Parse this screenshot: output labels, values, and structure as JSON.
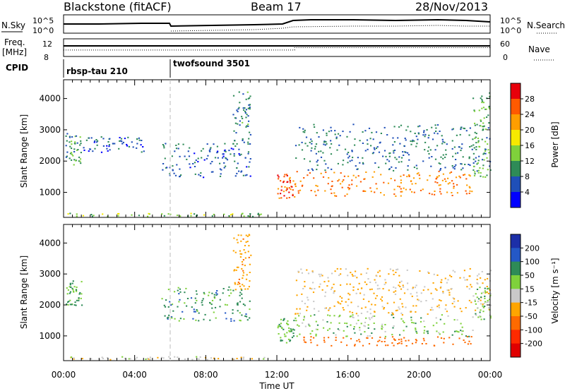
{
  "header": {
    "station": "Blackstone (fitACF)",
    "beam": "Beam 17",
    "date": "28/Nov/2013"
  },
  "noise_panel": {
    "left_label": "N.Sky",
    "right_label": "N.Search",
    "left_ticks": [
      "10^5",
      "10^0"
    ],
    "right_ticks": [
      "10^5",
      "10^0"
    ]
  },
  "freq_panel": {
    "left_label_line1": "Freq.",
    "left_label_line2": "[MHz]",
    "left_ticks": [
      "12",
      "8"
    ],
    "right_ticks": [
      "60",
      "0"
    ],
    "right_label": "Nave",
    "freq_level_mhz": 10.4,
    "nave_before": 22,
    "nave_after": 30,
    "nave_switch_hour": 13.0
  },
  "cpid": {
    "label": "CPID",
    "segments": [
      {
        "name": "rbsp-tau 210",
        "start_hour": 0.0
      },
      {
        "name": "twofsound 3501",
        "start_hour": 6.0
      }
    ]
  },
  "axes": {
    "xlabel": "Time UT",
    "x_ticks": [
      "00:00",
      "04:00",
      "08:00",
      "12:00",
      "16:00",
      "20:00",
      "00:00"
    ],
    "x_tick_hours": [
      0,
      4,
      8,
      12,
      16,
      20,
      24
    ],
    "ylabel": "Slant Range [km]",
    "y_ticks": [
      1000,
      2000,
      3000,
      4000
    ],
    "ylim": [
      200,
      4600
    ],
    "xlim": [
      0,
      24
    ]
  },
  "colorbars": {
    "power": {
      "label": "Power [dB]",
      "ticks": [
        "28",
        "24",
        "20",
        "16",
        "12",
        "8",
        "4"
      ],
      "colors": [
        "#e8000b",
        "#ff5a00",
        "#ff9e00",
        "#f6e900",
        "#7fd13b",
        "#2e8b57",
        "#1f4fb8",
        "#0000ff"
      ]
    },
    "velocity": {
      "label": "Velocity [m s⁻¹]",
      "ticks": [
        "200",
        "100",
        "50",
        "15",
        "-15",
        "-50",
        "-100",
        "-200"
      ],
      "colors": [
        "#1c2fa8",
        "#2458c6",
        "#2e8b57",
        "#7fd13b",
        "#c9c9c9",
        "#ffa500",
        "#ff6a00",
        "#ff2a00",
        "#e00000"
      ]
    }
  },
  "chart_data": [
    {
      "type": "heatmap",
      "title": "Power",
      "xlabel": "Time UT",
      "ylabel": "Slant Range [km]",
      "xlim": [
        0,
        24
      ],
      "ylim": [
        200,
        4600
      ],
      "colorbar_label": "Power [dB]",
      "regions": [
        {
          "start_hour": 0.1,
          "end_hour": 1.0,
          "range_min_km": 1900,
          "range_max_km": 2900,
          "value_db": 10
        },
        {
          "start_hour": 1.0,
          "end_hour": 4.5,
          "range_min_km": 2300,
          "range_max_km": 2800,
          "value_db": 6
        },
        {
          "start_hour": 0.2,
          "end_hour": 11.5,
          "range_min_km": 250,
          "range_max_km": 350,
          "value_db": 14
        },
        {
          "start_hour": 5.5,
          "end_hour": 10.5,
          "range_min_km": 1500,
          "range_max_km": 2600,
          "value_db": 7
        },
        {
          "start_hour": 9.5,
          "end_hour": 10.5,
          "range_min_km": 2500,
          "range_max_km": 4300,
          "value_db": 9
        },
        {
          "start_hour": 12.0,
          "end_hour": 13.0,
          "range_min_km": 800,
          "range_max_km": 1600,
          "value_db": 26
        },
        {
          "start_hour": 13.0,
          "end_hour": 23.0,
          "range_min_km": 900,
          "range_max_km": 1700,
          "value_db": 24
        },
        {
          "start_hour": 13.0,
          "end_hour": 24.0,
          "range_min_km": 1700,
          "range_max_km": 3200,
          "value_db": 8
        },
        {
          "start_hour": 23.0,
          "end_hour": 24.0,
          "range_min_km": 1500,
          "range_max_km": 4200,
          "value_db": 12
        }
      ]
    },
    {
      "type": "heatmap",
      "title": "Velocity",
      "xlabel": "Time UT",
      "ylabel": "Slant Range [km]",
      "xlim": [
        0,
        24
      ],
      "ylim": [
        200,
        4600
      ],
      "colorbar_label": "Velocity [m s⁻¹]",
      "regions": [
        {
          "start_hour": 0.1,
          "end_hour": 1.0,
          "range_min_km": 2000,
          "range_max_km": 2800,
          "value_ms": 20
        },
        {
          "start_hour": 0.2,
          "end_hour": 11.5,
          "range_min_km": 250,
          "range_max_km": 350,
          "value_ms": -40
        },
        {
          "start_hour": 5.5,
          "end_hour": 10.5,
          "range_min_km": 1500,
          "range_max_km": 2600,
          "value_ms": 30
        },
        {
          "start_hour": 9.5,
          "end_hour": 10.5,
          "range_min_km": 2500,
          "range_max_km": 4300,
          "value_ms": -80
        },
        {
          "start_hour": 12.0,
          "end_hour": 13.0,
          "range_min_km": 800,
          "range_max_km": 1600,
          "value_ms": 20
        },
        {
          "start_hour": 13.0,
          "end_hour": 23.0,
          "range_min_km": 1000,
          "range_max_km": 1700,
          "value_ms": 0
        },
        {
          "start_hour": 13.0,
          "end_hour": 23.0,
          "range_min_km": 700,
          "range_max_km": 1000,
          "value_ms": -150
        },
        {
          "start_hour": 13.0,
          "end_hour": 24.0,
          "range_min_km": 1700,
          "range_max_km": 3200,
          "value_ms": -60
        },
        {
          "start_hour": 23.0,
          "end_hour": 24.0,
          "range_min_km": 1500,
          "range_max_km": 2600,
          "value_ms": 0
        }
      ]
    }
  ]
}
